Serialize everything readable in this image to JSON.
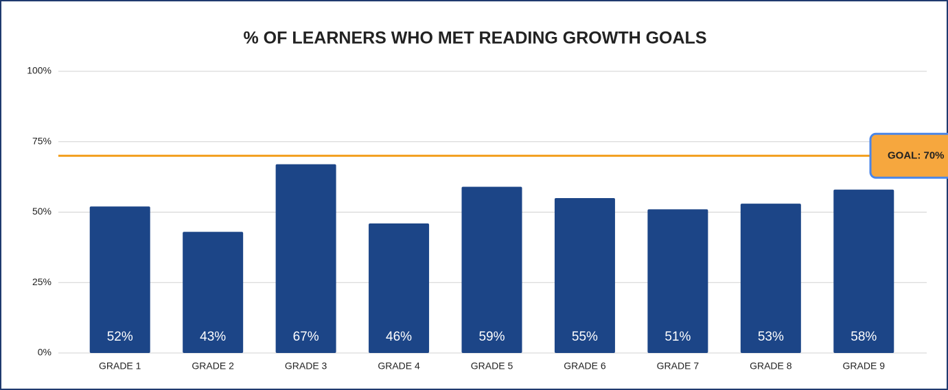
{
  "chart_data": {
    "type": "bar",
    "title": "% OF LEARNERS WHO MET READING GROWTH GOALS",
    "categories": [
      "GRADE 1",
      "GRADE 2",
      "GRADE 3",
      "GRADE 4",
      "GRADE 5",
      "GRADE 6",
      "GRADE 7",
      "GRADE 8",
      "GRADE 9"
    ],
    "values": [
      52,
      43,
      67,
      46,
      59,
      55,
      51,
      53,
      58
    ],
    "value_labels": [
      "52%",
      "43%",
      "67%",
      "46%",
      "59%",
      "55%",
      "51%",
      "53%",
      "58%"
    ],
    "color": "#1c4587",
    "ylim": [
      0,
      100
    ],
    "yticks": [
      {
        "value": 0,
        "label": "0%"
      },
      {
        "value": 25,
        "label": "25%"
      },
      {
        "value": 50,
        "label": "50%"
      },
      {
        "value": 75,
        "label": "75%"
      },
      {
        "value": 100,
        "label": "100%"
      }
    ],
    "grid": true,
    "goal": {
      "value": 70,
      "label": "GOAL: 70%",
      "color": "#f29d1a"
    }
  }
}
